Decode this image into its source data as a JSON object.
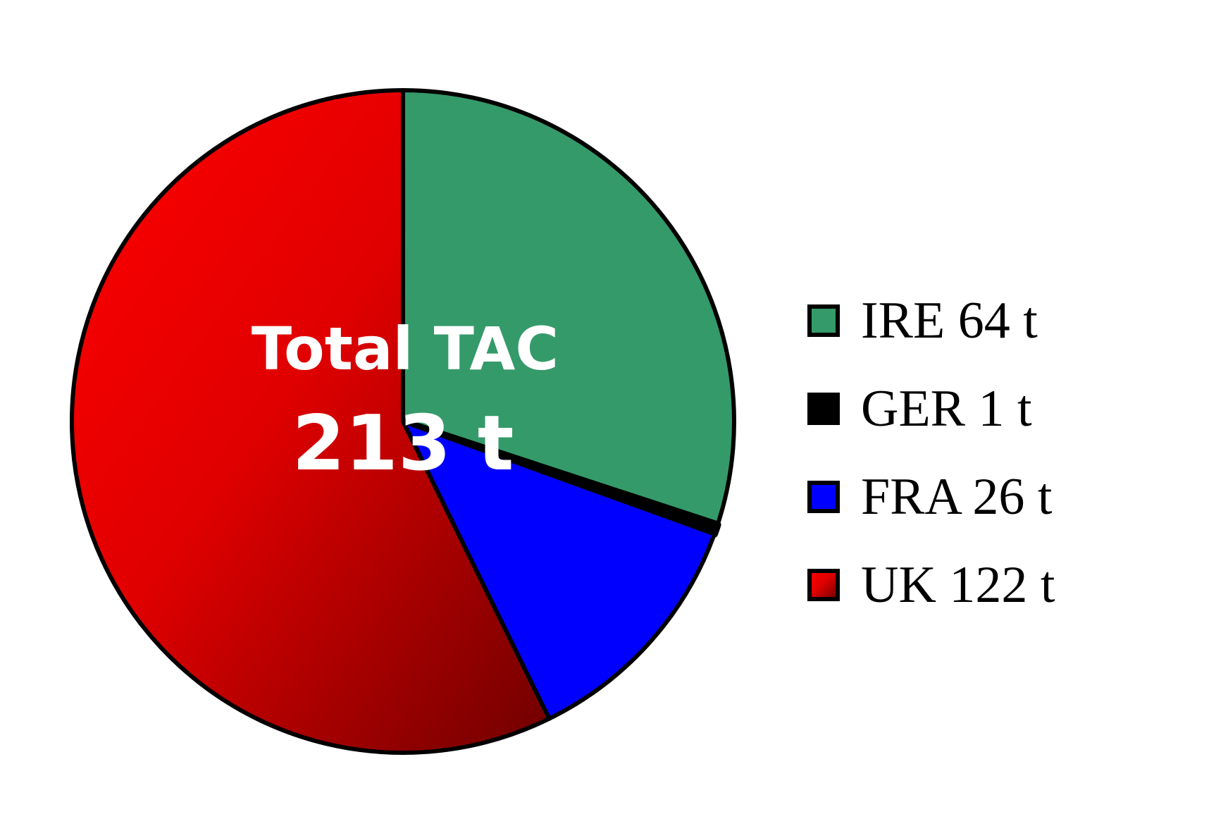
{
  "chart_data": {
    "type": "pie",
    "categories": [
      "IRE",
      "GER",
      "FRA",
      "UK"
    ],
    "values": [
      64,
      1,
      26,
      122
    ],
    "unit": "t",
    "center_label": {
      "line1": "Total TAC",
      "line2": "213 t"
    },
    "legend": {
      "placement": "right",
      "entries": [
        "IRE 64 t",
        "GER 1 t",
        "FRA 26 t",
        "UK 122 t"
      ]
    },
    "colors": [
      "#359a6a",
      "#000000",
      "#0000ff",
      "#e00000"
    ],
    "start_angle_deg": 0,
    "direction": "clockwise"
  }
}
